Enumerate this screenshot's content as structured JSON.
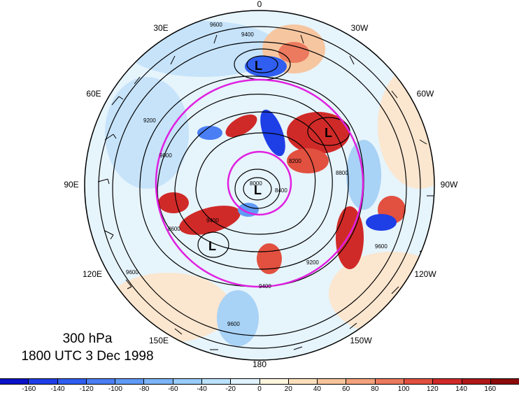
{
  "map": {
    "projection": "polar stereographic, north pole",
    "longitude_labels": [
      {
        "id": "0",
        "text": "0"
      },
      {
        "id": "30w",
        "text": "30W"
      },
      {
        "id": "60w",
        "text": "60W"
      },
      {
        "id": "90w",
        "text": "90W"
      },
      {
        "id": "120w",
        "text": "120W"
      },
      {
        "id": "150w",
        "text": "150W"
      },
      {
        "id": "180",
        "text": "180"
      },
      {
        "id": "150e",
        "text": "150E"
      },
      {
        "id": "120e",
        "text": "120E"
      },
      {
        "id": "90e",
        "text": "90E"
      },
      {
        "id": "60e",
        "text": "60E"
      },
      {
        "id": "30e",
        "text": "30E"
      }
    ],
    "low_centers": [
      "L",
      "L",
      "L",
      "L"
    ],
    "contour_labels": [
      "9600",
      "9400",
      "9200",
      "9000",
      "8800",
      "8600",
      "8400",
      "8200",
      "8000"
    ],
    "ring_color": "#e020e0",
    "contour_color": "#000000"
  },
  "caption": {
    "level": "300 hPa",
    "time": "1800 UTC 3 Dec 1998"
  },
  "colorbar": {
    "colors": [
      "#0a12c8",
      "#1e3ee6",
      "#2f5ef0",
      "#4a7ef4",
      "#5f9af6",
      "#7cb4f8",
      "#99ccfa",
      "#bbe2fc",
      "#dff2fd",
      "#fff6df",
      "#fce0bc",
      "#f8c49a",
      "#f3a27c",
      "#ec7a5e",
      "#e2503f",
      "#d02a28",
      "#b01818",
      "#8c0a0a"
    ],
    "ticks": [
      "-160",
      "-140",
      "-120",
      "-100",
      "-80",
      "-60",
      "-40",
      "-20",
      "0",
      "20",
      "40",
      "60",
      "80",
      "100",
      "120",
      "140",
      "160"
    ]
  }
}
